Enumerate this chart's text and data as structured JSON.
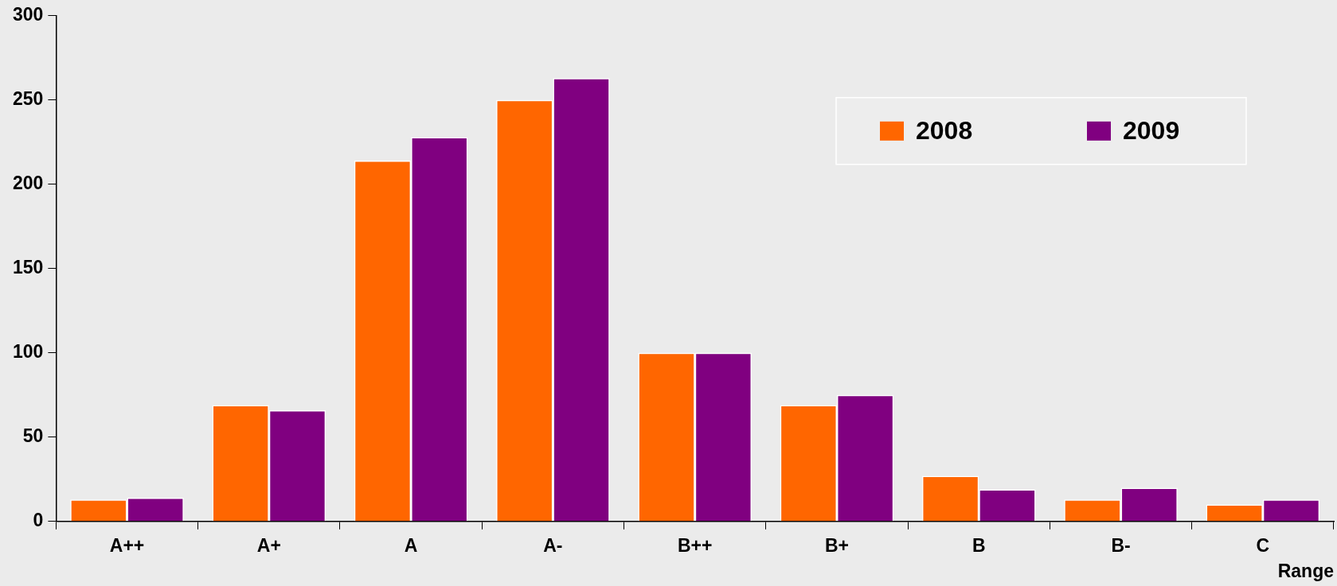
{
  "chart_data": {
    "type": "bar",
    "xlabel": "Range",
    "categories": [
      "A++",
      "A+",
      "A",
      "A-",
      "B++",
      "B+",
      "B",
      "B-",
      "C"
    ],
    "series": [
      {
        "name": "2008",
        "color": "#ff6600",
        "values": [
          13,
          69,
          214,
          250,
          100,
          69,
          27,
          13,
          10
        ]
      },
      {
        "name": "2009",
        "color": "#800080",
        "values": [
          14,
          66,
          228,
          263,
          100,
          75,
          19,
          20,
          13
        ]
      }
    ],
    "ylim": [
      0,
      300
    ],
    "yticks": [
      0,
      50,
      100,
      150,
      200,
      250,
      300
    ],
    "grid": false,
    "legend": "top right"
  }
}
